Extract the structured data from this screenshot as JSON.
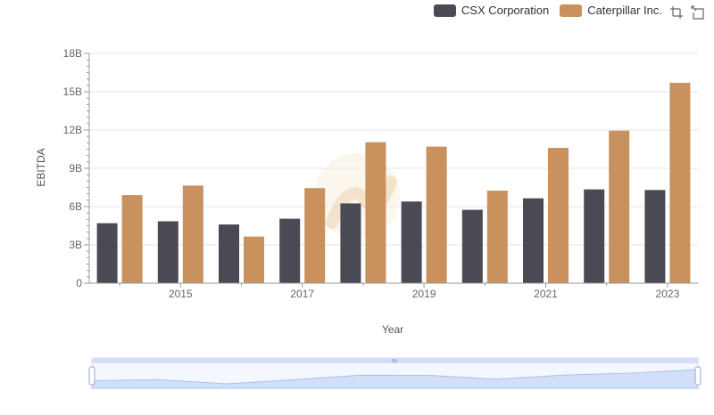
{
  "legend": [
    {
      "name": "CSX Corporation",
      "color": "#4a4a55"
    },
    {
      "name": "Caterpillar Inc.",
      "color": "#c8915e"
    }
  ],
  "toolbox": {
    "icons": [
      "zoom-icon",
      "restore-icon"
    ]
  },
  "watermark": {
    "icon": "brand-logo-watermark"
  },
  "chart_data": {
    "type": "bar",
    "title": "",
    "xlabel": "Year",
    "ylabel": "EBITDA",
    "categories": [
      "2014",
      "2015",
      "2016",
      "2017",
      "2018",
      "2019",
      "2020",
      "2021",
      "2022",
      "2023"
    ],
    "x_tick_labels": [
      "2015",
      "2017",
      "2019",
      "2021",
      "2023"
    ],
    "y_tick_labels": [
      "0",
      "3B",
      "6B",
      "9B",
      "12B",
      "15B",
      "18B"
    ],
    "ylim": [
      0,
      18000000000
    ],
    "grid": true,
    "legend_position": "top-right",
    "series": [
      {
        "name": "CSX Corporation",
        "color": "#4a4a55",
        "values": [
          4700000000,
          4850000000,
          4600000000,
          5050000000,
          6250000000,
          6400000000,
          5750000000,
          6650000000,
          7350000000,
          7300000000
        ]
      },
      {
        "name": "Caterpillar Inc.",
        "color": "#c8915e",
        "values": [
          6900000000,
          7650000000,
          3650000000,
          7450000000,
          11050000000,
          10700000000,
          7250000000,
          10600000000,
          11950000000,
          15700000000
        ]
      }
    ]
  }
}
